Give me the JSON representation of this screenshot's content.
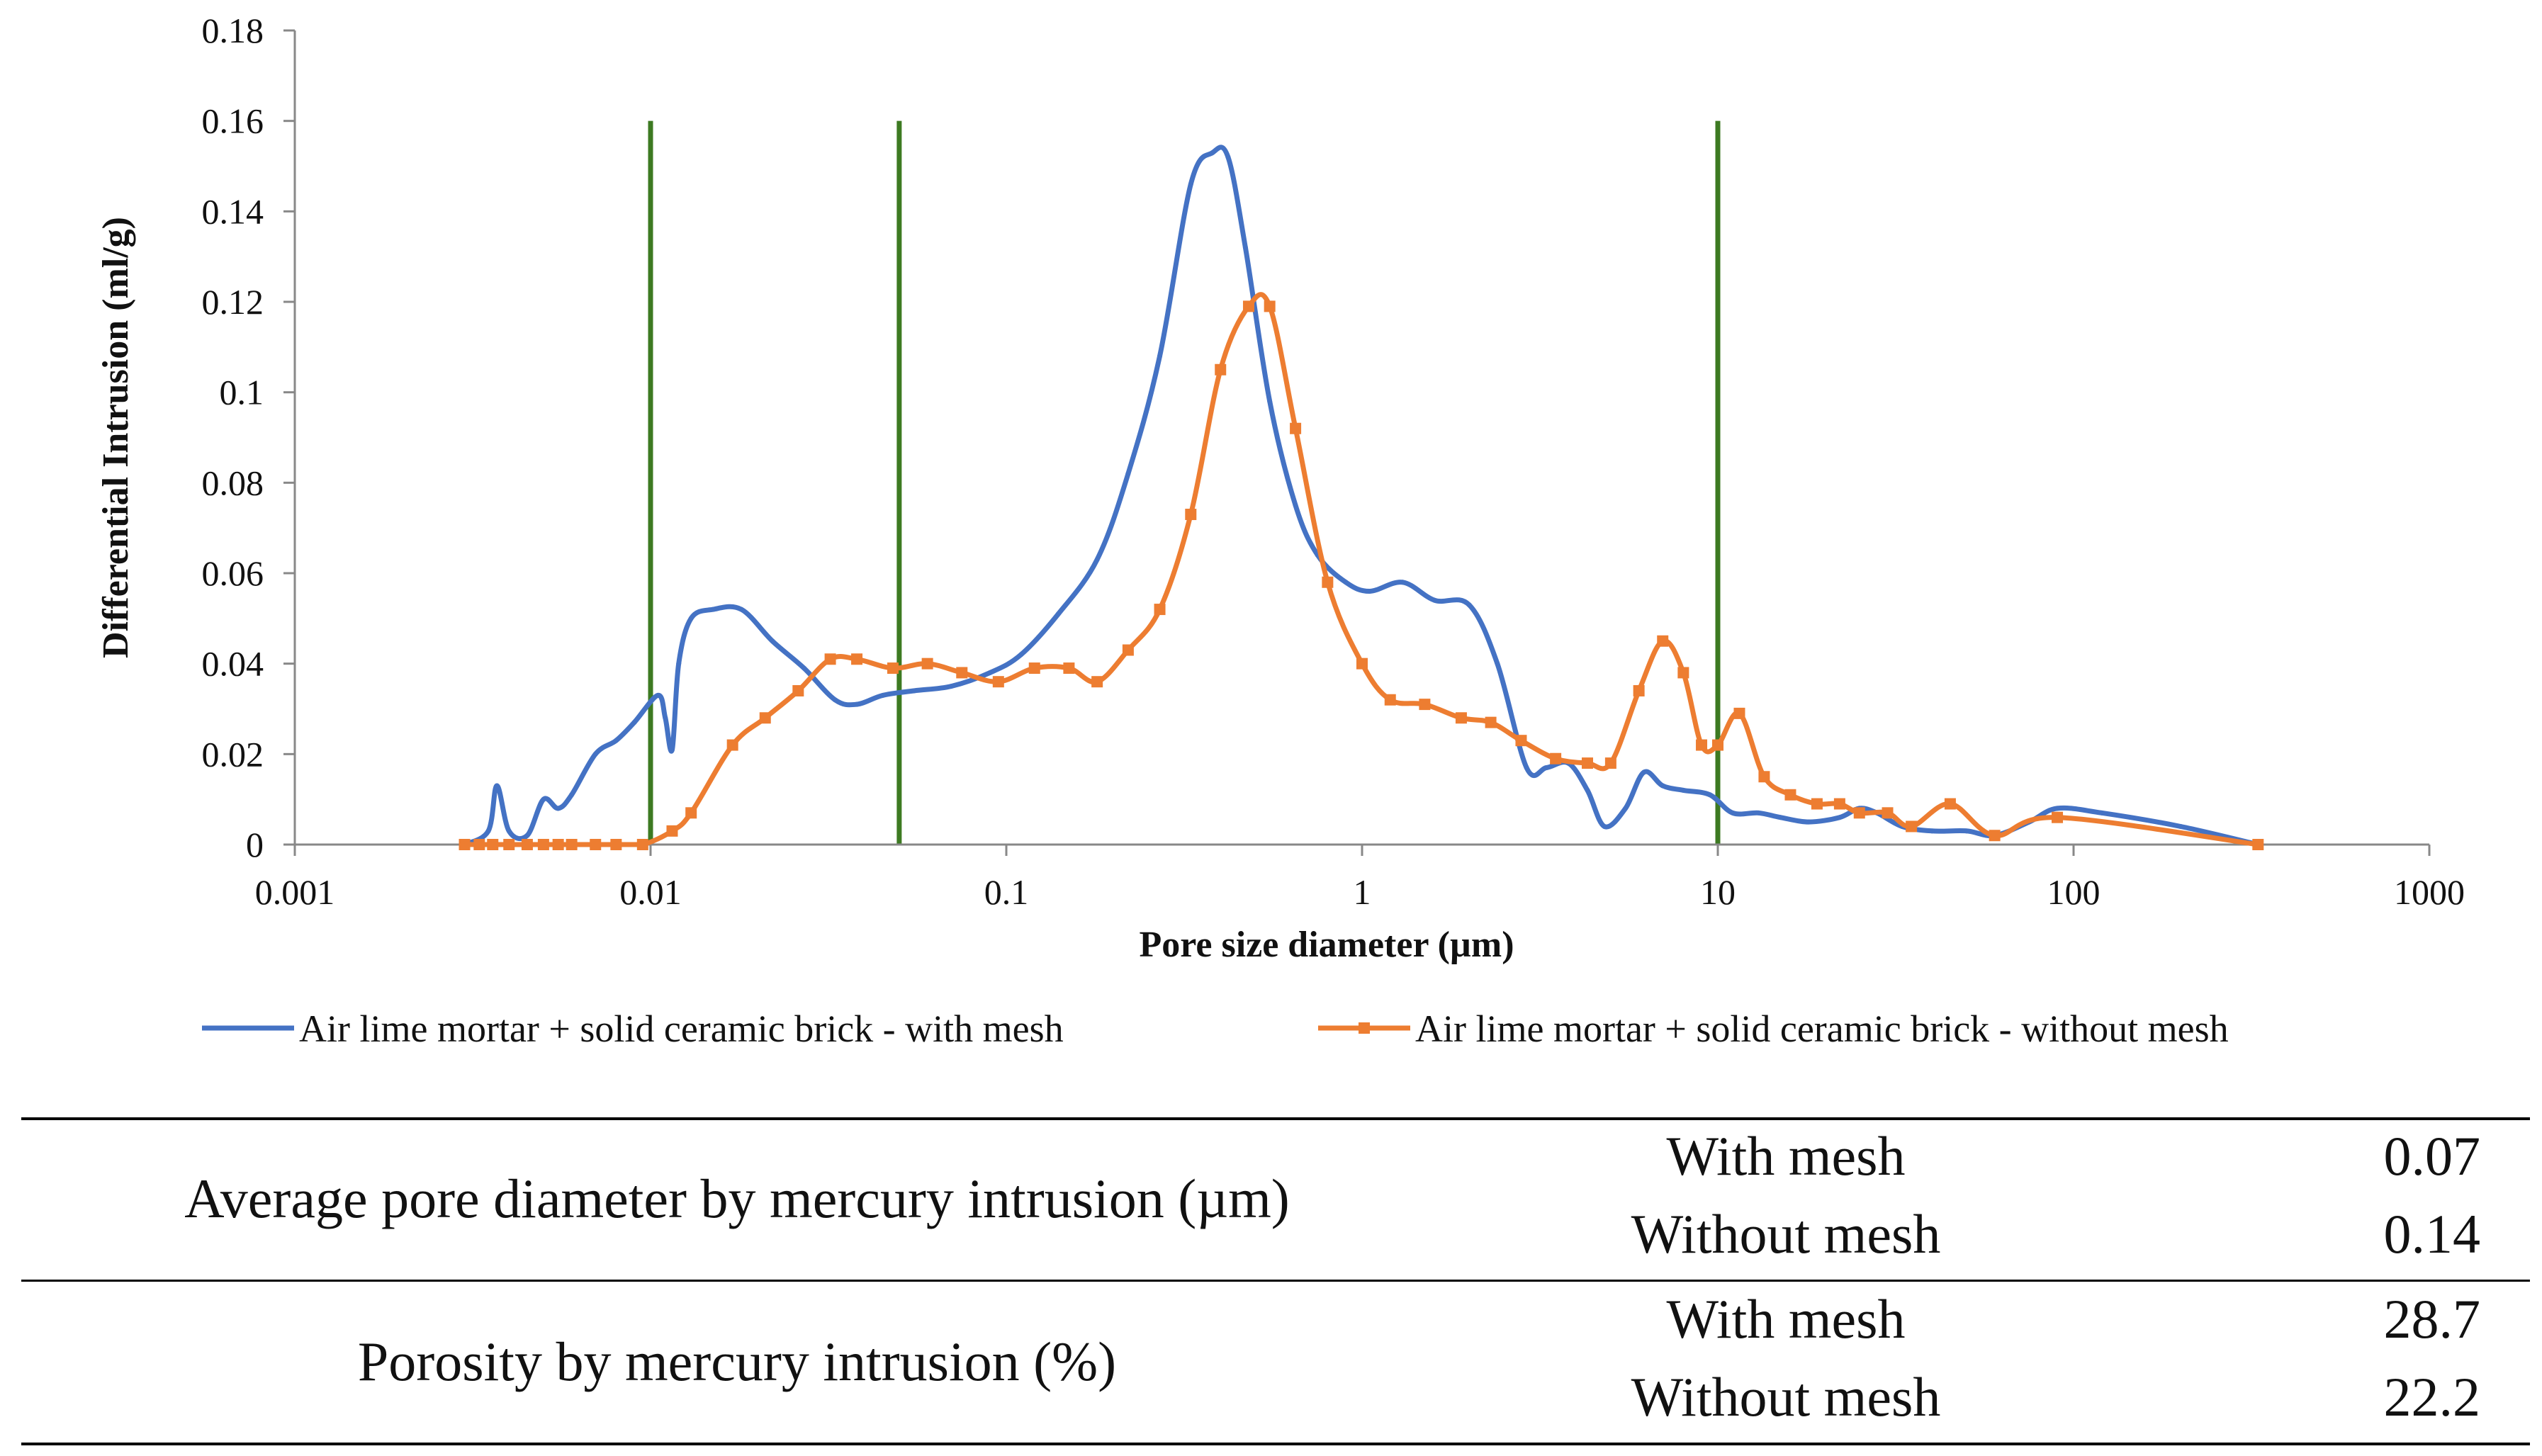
{
  "chart_data": {
    "type": "line",
    "title": "",
    "xlabel": "Pore size diameter (µm)",
    "ylabel": "Differential Intrusion (ml/g)",
    "xscale": "log",
    "xlim": [
      0.001,
      1000
    ],
    "ylim": [
      0,
      0.18
    ],
    "x_ticks": [
      "0.001",
      "0.01",
      "0.1",
      "1",
      "10",
      "100",
      "1000"
    ],
    "y_ticks": [
      "0",
      "0.02",
      "0.04",
      "0.06",
      "0.08",
      "0.1",
      "0.12",
      "0.14",
      "0.16",
      "0.18"
    ],
    "vertical_lines": {
      "x": [
        0.01,
        0.05,
        10
      ],
      "ymax": 0.16,
      "color": "#3d7a22"
    },
    "legend_position": "bottom",
    "series": [
      {
        "name": "Air lime mortar + solid ceramic brick - with mesh",
        "color": "#4472c4",
        "marker": "small",
        "x": [
          0.003,
          0.0035,
          0.0037,
          0.004,
          0.0045,
          0.005,
          0.0055,
          0.006,
          0.007,
          0.008,
          0.009,
          0.0105,
          0.011,
          0.0115,
          0.012,
          0.013,
          0.015,
          0.018,
          0.022,
          0.027,
          0.033,
          0.038,
          0.045,
          0.055,
          0.07,
          0.09,
          0.11,
          0.14,
          0.18,
          0.22,
          0.27,
          0.33,
          0.38,
          0.42,
          0.47,
          0.55,
          0.65,
          0.75,
          0.9,
          1.05,
          1.3,
          1.6,
          2.0,
          2.4,
          2.9,
          3.3,
          3.8,
          4.3,
          4.8,
          5.5,
          6.2,
          7.0,
          8.0,
          9.5,
          11.0,
          13.0,
          15.0,
          18.0,
          22.0,
          25.0,
          28.0,
          33.0,
          40.0,
          50.0,
          60.0,
          75.0,
          90.0,
          120.0,
          200.0,
          330.0
        ],
        "values": [
          0.0,
          0.003,
          0.013,
          0.003,
          0.002,
          0.01,
          0.008,
          0.011,
          0.02,
          0.023,
          0.027,
          0.033,
          0.028,
          0.021,
          0.04,
          0.05,
          0.052,
          0.052,
          0.045,
          0.039,
          0.032,
          0.031,
          0.033,
          0.034,
          0.035,
          0.038,
          0.042,
          0.051,
          0.063,
          0.082,
          0.108,
          0.146,
          0.153,
          0.152,
          0.132,
          0.098,
          0.075,
          0.064,
          0.058,
          0.056,
          0.058,
          0.054,
          0.053,
          0.04,
          0.017,
          0.017,
          0.018,
          0.012,
          0.004,
          0.008,
          0.016,
          0.013,
          0.012,
          0.011,
          0.007,
          0.007,
          0.006,
          0.005,
          0.006,
          0.008,
          0.007,
          0.004,
          0.003,
          0.003,
          0.002,
          0.005,
          0.008,
          0.007,
          0.004,
          0.0
        ]
      },
      {
        "name": "Air lime mortar + solid ceramic brick - without mesh",
        "color": "#ed7d31",
        "marker": "square",
        "x": [
          0.003,
          0.0033,
          0.0036,
          0.004,
          0.0045,
          0.005,
          0.0055,
          0.006,
          0.007,
          0.008,
          0.0095,
          0.0115,
          0.013,
          0.017,
          0.021,
          0.026,
          0.032,
          0.038,
          0.048,
          0.06,
          0.075,
          0.095,
          0.12,
          0.15,
          0.18,
          0.22,
          0.27,
          0.33,
          0.4,
          0.48,
          0.55,
          0.65,
          0.8,
          1.0,
          1.2,
          1.5,
          1.9,
          2.3,
          2.8,
          3.5,
          4.3,
          5.0,
          6.0,
          7.0,
          8.0,
          9.0,
          10.0,
          11.5,
          13.5,
          16.0,
          19.0,
          22.0,
          25.0,
          30.0,
          35.0,
          45.0,
          60.0,
          90.0,
          330.0
        ],
        "values": [
          0.0,
          0.0,
          0.0,
          0.0,
          0.0,
          0.0,
          0.0,
          0.0,
          0.0,
          0.0,
          0.0,
          0.003,
          0.007,
          0.022,
          0.028,
          0.034,
          0.041,
          0.041,
          0.039,
          0.04,
          0.038,
          0.036,
          0.039,
          0.039,
          0.036,
          0.043,
          0.052,
          0.073,
          0.105,
          0.119,
          0.119,
          0.092,
          0.058,
          0.04,
          0.032,
          0.031,
          0.028,
          0.027,
          0.023,
          0.019,
          0.018,
          0.018,
          0.034,
          0.045,
          0.038,
          0.022,
          0.022,
          0.029,
          0.015,
          0.011,
          0.009,
          0.009,
          0.007,
          0.007,
          0.004,
          0.009,
          0.002,
          0.006,
          0.0
        ]
      }
    ]
  },
  "table": {
    "groups": [
      {
        "label": "Average pore diameter by mercury intrusion (µm)",
        "rows": [
          {
            "condition": "With mesh",
            "value": "0.07"
          },
          {
            "condition": "Without mesh",
            "value": "0.14"
          }
        ]
      },
      {
        "label": "Porosity by mercury intrusion (%)",
        "rows": [
          {
            "condition": "With mesh",
            "value": "28.7"
          },
          {
            "condition": "Without mesh",
            "value": "22.2"
          }
        ]
      }
    ]
  }
}
